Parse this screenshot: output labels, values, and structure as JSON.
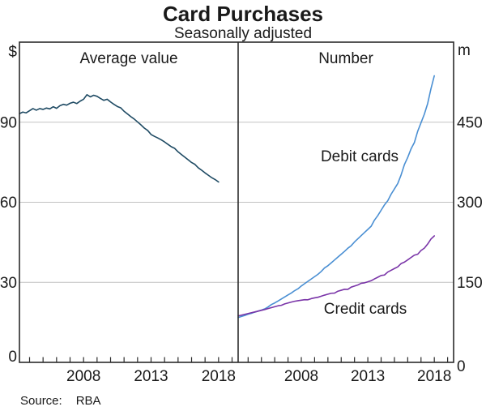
{
  "header": {
    "title": "Card Purchases",
    "subtitle": "Seasonally adjusted"
  },
  "panels": {
    "left_title": "Average value",
    "right_title": "Number"
  },
  "axes": {
    "left_unit": "$",
    "right_unit": "m"
  },
  "series_labels": {
    "debit": "Debit cards",
    "credit": "Credit cards"
  },
  "footer": {
    "source_label": "Source:",
    "source_value": "RBA"
  },
  "colors": {
    "average_value": "#1e4a63",
    "debit": "#4a8fd3",
    "credit": "#7a35a8",
    "grid": "#c2c2c2",
    "frame": "#2b2b2b"
  },
  "chart_data": {
    "type": "line",
    "title": "Card Purchases",
    "subtitle": "Seasonally adjusted",
    "grid": true,
    "x": {
      "range": [
        2003.25,
        2019.45
      ],
      "tick_years": [
        2004,
        2005,
        2006,
        2007,
        2008,
        2009,
        2010,
        2011,
        2012,
        2013,
        2014,
        2015,
        2016,
        2017,
        2018,
        2019
      ],
      "label_years": [
        2008,
        2013,
        2018
      ]
    },
    "panels": [
      {
        "title": "Average value",
        "unit": "$",
        "ylim": [
          0,
          120
        ],
        "yticks": [
          0,
          30,
          60,
          90
        ],
        "series": [
          {
            "name": "Average value",
            "color_key": "average_value",
            "x_start": 2003.25,
            "x_step": 0.25,
            "values": [
              93.2,
              93.8,
              93.5,
              94.3,
              95.1,
              94.5,
              95.1,
              94.8,
              95.3,
              95.0,
              95.8,
              95.2,
              96.2,
              96.7,
              96.4,
              97.1,
              97.5,
              97.0,
              97.9,
              98.6,
              100.3,
              99.5,
              100.1,
              99.7,
              98.9,
              98.2,
              98.6,
              97.6,
              96.7,
              95.9,
              95.4,
              94.1,
              93.1,
              92.1,
              91.2,
              90.1,
              89.0,
              87.8,
              86.9,
              85.4,
              84.7,
              84.1,
              83.4,
              82.6,
              81.7,
              80.8,
              80.2,
              78.9,
              77.9,
              76.9,
              75.9,
              74.9,
              74.2,
              72.9,
              72.0,
              71.0,
              70.1,
              69.2,
              68.5,
              67.6
            ]
          }
        ]
      },
      {
        "title": "Number",
        "unit": "m",
        "ylim": [
          0,
          600
        ],
        "yticks": [
          0,
          150,
          300,
          450
        ],
        "series": [
          {
            "name": "Debit cards",
            "color_key": "debit",
            "x_start": 2003.25,
            "x_step": 0.25,
            "values": [
              84,
              86,
              88,
              90.2,
              92,
              94.1,
              96,
              98,
              100.2,
              103.8,
              108.3,
              111.3,
              115,
              118.8,
              122.5,
              126.3,
              130,
              134.4,
              137.9,
              143.1,
              147.5,
              151.9,
              156.3,
              160.6,
              165,
              170.4,
              177.0,
              181.1,
              186.5,
              191.9,
              197.3,
              202.6,
              208,
              213.9,
              218.6,
              225.6,
              231.5,
              237.4,
              243.3,
              249.1,
              255,
              266.5,
              275,
              285,
              295,
              302.8,
              315,
              325,
              335,
              351,
              370.5,
              384,
              400,
              411.8,
              433,
              449,
              465,
              485,
              513,
              537
            ]
          },
          {
            "name": "Credit cards",
            "color_key": "credit",
            "x_start": 2003.25,
            "x_step": 0.25,
            "values": [
              87,
              88.5,
              90,
              91.5,
              93,
              94.5,
              96,
              97.5,
              99,
              100.8,
              102.5,
              104.3,
              106,
              106.9,
              109.5,
              111.3,
              113,
              114.5,
              115.5,
              116.5,
              117.5,
              117.3,
              119.5,
              120.8,
              122,
              124,
              126,
              127.8,
              129.5,
              129.8,
              133.3,
              135.1,
              137,
              136.8,
              141,
              143,
              145,
              148.2,
              149,
              151,
              153,
              156.3,
              159.5,
              162.8,
              163.7,
              169.3,
              172.5,
              175.8,
              179,
              185.1,
              187.8,
              192.1,
              196.5,
              200.9,
              202.6,
              209.6,
              214,
              221.7,
              231.2,
              237
            ]
          }
        ]
      }
    ]
  }
}
